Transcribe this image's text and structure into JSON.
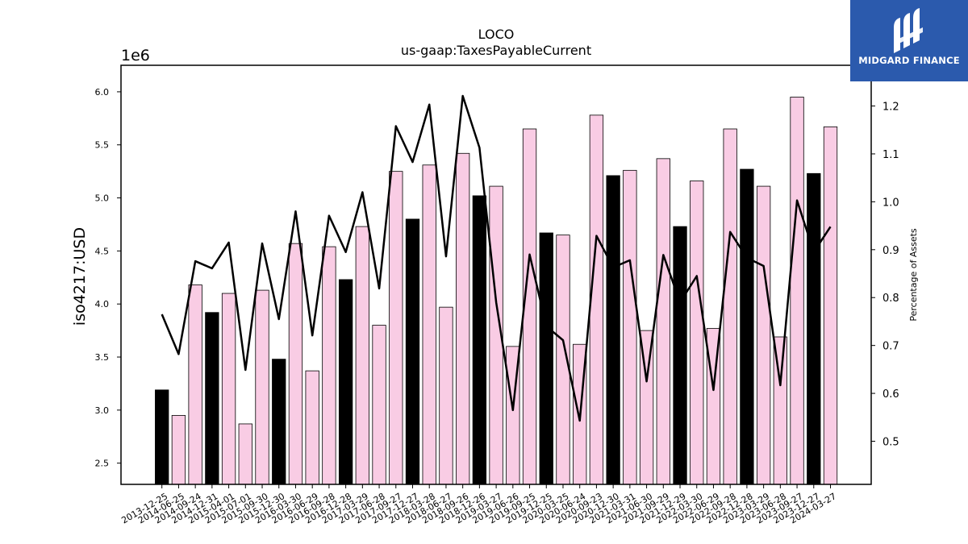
{
  "chart_data": {
    "type": "bar",
    "title": "LOCO",
    "subtitle": "us-gaap:TaxesPayableCurrent",
    "ylabel": "iso4217:USD",
    "y2label": "Percentage of Assets",
    "y_offset_label": "1e6",
    "ylim": [
      2.3,
      6.25
    ],
    "y2lim": [
      0.41,
      1.285
    ],
    "yticks": [
      "2.5",
      "3.0",
      "3.5",
      "4.0",
      "4.5",
      "5.0",
      "5.5",
      "6.0"
    ],
    "y2ticks": [
      "0.5",
      "0.6",
      "0.7",
      "0.8",
      "0.9",
      "1.0",
      "1.1",
      "1.2"
    ],
    "grid": false,
    "colors": {
      "q4_bar": "#000000",
      "other_bar": "#f9cce4",
      "line": "#000000"
    },
    "categories": [
      "2013-12-25",
      "2014-06-25",
      "2014-09-24",
      "2014-12-31",
      "2015-04-01",
      "2015-07-01",
      "2015-09-30",
      "2015-12-30",
      "2016-03-30",
      "2016-06-29",
      "2016-09-28",
      "2016-12-28",
      "2017-03-29",
      "2017-06-28",
      "2017-09-27",
      "2017-12-27",
      "2018-03-28",
      "2018-06-27",
      "2018-09-26",
      "2018-12-26",
      "2019-03-27",
      "2019-06-26",
      "2019-09-25",
      "2019-12-25",
      "2020-03-25",
      "2020-06-24",
      "2020-09-23",
      "2020-12-30",
      "2021-03-31",
      "2021-06-30",
      "2021-09-29",
      "2021-12-29",
      "2022-03-30",
      "2022-06-29",
      "2022-09-28",
      "2022-12-28",
      "2023-03-29",
      "2023-06-28",
      "2023-09-27",
      "2023-12-27",
      "2024-03-27"
    ],
    "series": [
      {
        "values": [
          3.19,
          2.95,
          4.18,
          3.92,
          4.1,
          2.87,
          4.13,
          3.48,
          4.57,
          3.37,
          4.54,
          4.23,
          4.73,
          3.8,
          5.25,
          4.8,
          5.31,
          3.97,
          5.42,
          5.02,
          5.11,
          3.6,
          5.65,
          4.67,
          4.65,
          3.62,
          5.78,
          5.21,
          5.26,
          3.75,
          5.37,
          4.73,
          5.16,
          3.77,
          5.65,
          5.27,
          5.11,
          3.69,
          5.95,
          5.23,
          5.67
        ],
        "highlight": [
          true,
          false,
          false,
          true,
          false,
          false,
          false,
          true,
          false,
          false,
          false,
          true,
          false,
          false,
          false,
          true,
          false,
          false,
          false,
          true,
          false,
          false,
          false,
          true,
          false,
          false,
          false,
          true,
          false,
          false,
          false,
          true,
          false,
          false,
          false,
          true,
          false,
          false,
          false,
          true,
          false
        ]
      },
      {
        "axis": "right",
        "values": [
          0.765,
          0.682,
          0.876,
          0.861,
          0.915,
          0.649,
          0.913,
          0.755,
          0.98,
          0.721,
          0.971,
          0.895,
          1.02,
          0.819,
          1.158,
          1.083,
          1.203,
          0.886,
          1.221,
          1.113,
          0.79,
          0.565,
          0.89,
          0.74,
          0.711,
          0.543,
          0.929,
          0.863,
          0.878,
          0.625,
          0.889,
          0.79,
          0.845,
          0.607,
          0.937,
          0.883,
          0.866,
          0.617,
          1.003,
          0.895,
          0.948
        ]
      }
    ]
  },
  "branding": {
    "name": "MIDGARD FINANCE"
  }
}
